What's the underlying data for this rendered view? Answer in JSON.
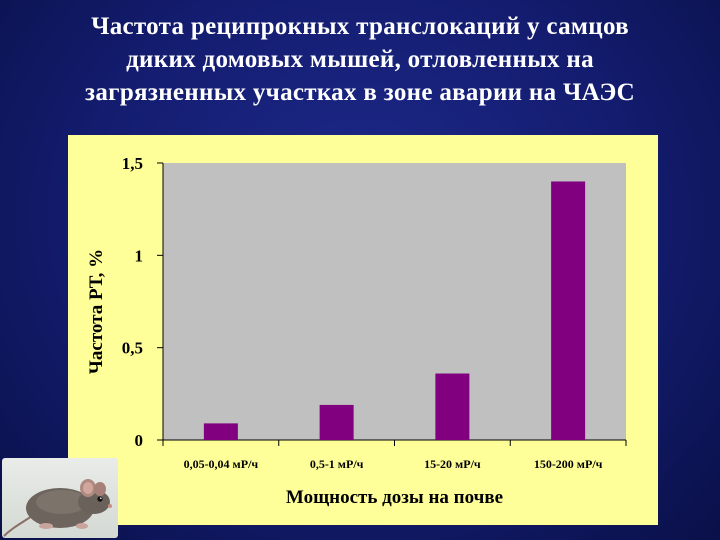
{
  "slide": {
    "title_lines": [
      "Частота реципрокных транслокаций у самцов",
      "диких домовых мышей, отловленных на",
      "загрязненных участках в зоне аварии на ЧАЭС"
    ]
  },
  "colors": {
    "background": "#131c6e",
    "panel": "#ffff99",
    "plot_area": "#c0c0c0",
    "bar": "#800080",
    "text": "#000000",
    "title": "#ffffff"
  },
  "icons": [
    "mouse-photo"
  ],
  "chart_data": {
    "type": "bar",
    "title": "",
    "xlabel": "Мощность дозы на почве",
    "ylabel": "Частота РТ, %",
    "categories": [
      "0,05-0,04 мР/ч",
      "0,5-1 мР/ч",
      "15-20 мР/ч",
      "150-200 мР/ч"
    ],
    "values": [
      0.09,
      0.19,
      0.36,
      1.4
    ],
    "ylim": [
      0,
      1.5
    ],
    "yticks": [
      0,
      0.5,
      1,
      1.5
    ],
    "ytick_labels": [
      "0",
      "0,5",
      "1",
      "1,5"
    ],
    "grid": false,
    "legend": "none"
  }
}
